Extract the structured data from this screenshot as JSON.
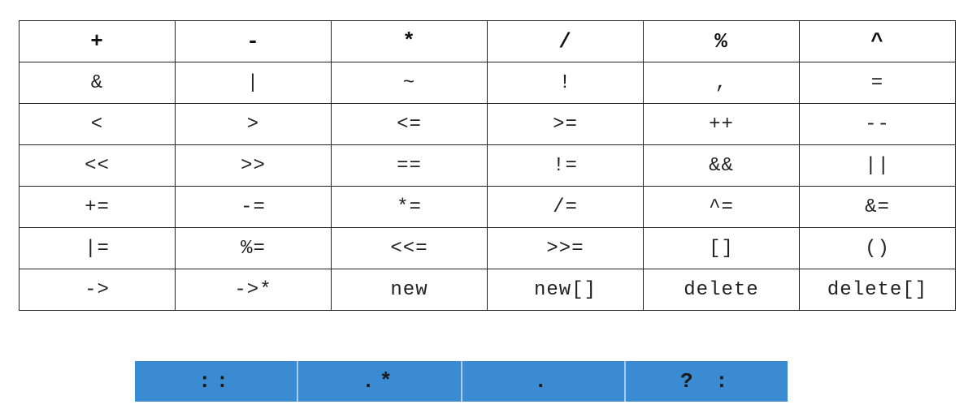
{
  "overloadable_operators": [
    [
      "+",
      "-",
      "*",
      "/",
      "%",
      "^"
    ],
    [
      "&",
      "|",
      "~",
      "!",
      ",",
      "="
    ],
    [
      "<",
      ">",
      "<=",
      ">=",
      "++",
      "--"
    ],
    [
      "<<",
      ">>",
      "==",
      "!=",
      "&&",
      "||"
    ],
    [
      "+=",
      "-=",
      "*=",
      "/=",
      "^=",
      "&="
    ],
    [
      "|=",
      "%=",
      "<<=",
      ">>=",
      "[]",
      "()"
    ],
    [
      "->",
      "->*",
      "new",
      "new[]",
      "delete",
      "delete[]"
    ]
  ],
  "non_overloadable_operators": [
    "::",
    ".*",
    ".",
    "? :"
  ],
  "colors": {
    "accent_bar": "#3a8bd1",
    "border": "#222222"
  }
}
